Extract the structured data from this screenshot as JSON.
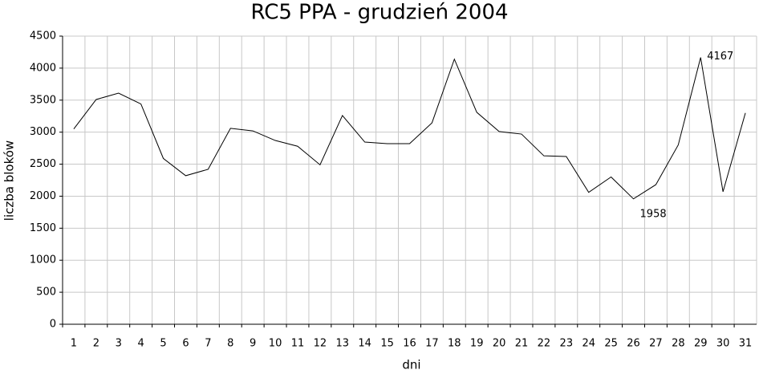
{
  "chart_data": {
    "type": "line",
    "title": "RC5 PPA - grudzień 2004",
    "x_label": "dni",
    "y_label": "liczba bloków",
    "categories": [
      "1",
      "2",
      "3",
      "4",
      "5",
      "6",
      "7",
      "8",
      "9",
      "10",
      "11",
      "12",
      "13",
      "14",
      "15",
      "16",
      "17",
      "18",
      "19",
      "20",
      "21",
      "22",
      "23",
      "24",
      "25",
      "26",
      "27",
      "28",
      "29",
      "30",
      "31"
    ],
    "values": [
      3050,
      3510,
      3610,
      3440,
      2590,
      2320,
      2420,
      3060,
      3020,
      2870,
      2780,
      2490,
      3260,
      2845,
      2820,
      2820,
      3145,
      4140,
      3310,
      3010,
      2970,
      2630,
      2620,
      2060,
      2300,
      1958,
      2180,
      2800,
      4167,
      2070,
      3300
    ],
    "color": "#000000",
    "ylim": [
      0,
      4500
    ],
    "yticks": [
      0,
      500,
      1000,
      1500,
      2000,
      2500,
      3000,
      3500,
      4000,
      4500
    ],
    "grid": true,
    "label_max_min": true
  }
}
